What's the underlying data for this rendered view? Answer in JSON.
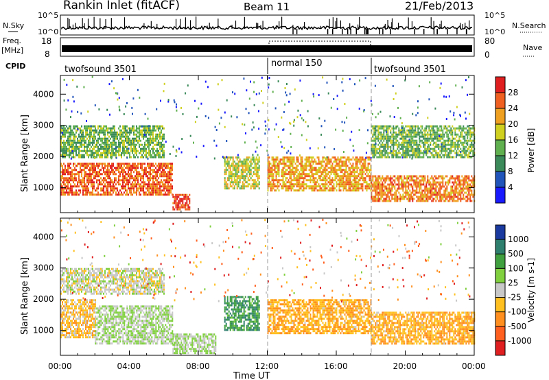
{
  "header": {
    "station": "Rankin Inlet (fitACF)",
    "beam": "Beam 11",
    "date": "21/Feb/2013"
  },
  "noise_panel": {
    "left_label": "N.Sky",
    "right_label": "N.Search",
    "left_ticks": [
      "10^5",
      "10^0"
    ],
    "right_ticks": [
      "10^5",
      "10^0"
    ]
  },
  "freq_panel": {
    "left_label_1": "Freq.",
    "left_label_2": "[MHz]",
    "right_label": "Nave",
    "left_ticks": [
      "18",
      "8"
    ],
    "right_ticks": [
      "80",
      "0"
    ]
  },
  "cpid": {
    "label": "CPID",
    "segments": [
      {
        "name": "twofsound 3501",
        "start_hour": 0
      },
      {
        "name": "normal 150",
        "start_hour": 12
      },
      {
        "name": "twofsound 3501",
        "start_hour": 18
      }
    ]
  },
  "time_axis": {
    "label": "Time UT",
    "ticks": [
      "00:00",
      "04:00",
      "08:00",
      "12:00",
      "16:00",
      "20:00",
      "00:00"
    ]
  },
  "range_axis": {
    "label": "Slant Range [km]",
    "ticks": [
      "1000",
      "2000",
      "3000",
      "4000"
    ]
  },
  "power_colorbar": {
    "label": "Power [dB]",
    "ticks": [
      "4",
      "8",
      "12",
      "16",
      "20",
      "24",
      "28"
    ],
    "colors": [
      "#1a1aff",
      "#2255bb",
      "#3a8a5a",
      "#60b050",
      "#d0d020",
      "#f0a020",
      "#f06020",
      "#e02020"
    ]
  },
  "velocity_colorbar": {
    "label": "Velocity [m s-1]",
    "ticks": [
      "1000",
      "500",
      "100",
      "25",
      "-25",
      "-100",
      "-500",
      "-1000"
    ],
    "colors": [
      "#1a3aa0",
      "#2f7f6f",
      "#40a040",
      "#80d040",
      "#c8c8c8",
      "#ffc020",
      "#ff9020",
      "#ff6020",
      "#e02020"
    ]
  },
  "chart_data": [
    {
      "type": "heatmap",
      "title": "Power [dB]",
      "xlabel": "Time UT",
      "ylabel": "Slant Range [km]",
      "xlim": [
        0,
        24
      ],
      "ylim": [
        200,
        4600
      ],
      "color_range": [
        0,
        32
      ],
      "features": [
        {
          "hours": [
            0,
            6.5
          ],
          "range_km": [
            800,
            1800
          ],
          "power_db": 26
        },
        {
          "hours": [
            0,
            6
          ],
          "range_km": [
            2000,
            3000
          ],
          "power_db": 14
        },
        {
          "hours": [
            6.5,
            7.5
          ],
          "range_km": [
            300,
            800
          ],
          "power_db": 28
        },
        {
          "hours": [
            9.5,
            11.5
          ],
          "range_km": [
            1000,
            2000
          ],
          "power_db": 18
        },
        {
          "hours": [
            12,
            18
          ],
          "range_km": [
            900,
            2000
          ],
          "power_db": 22
        },
        {
          "hours": [
            18,
            24
          ],
          "range_km": [
            600,
            1400
          ],
          "power_db": 24
        },
        {
          "hours": [
            18,
            24
          ],
          "range_km": [
            2000,
            3000
          ],
          "power_db": 14
        }
      ]
    },
    {
      "type": "heatmap",
      "title": "Velocity",
      "xlabel": "Time UT",
      "ylabel": "Slant Range [km]",
      "xlim": [
        0,
        24
      ],
      "ylim": [
        200,
        4600
      ],
      "color_range": [
        -1000,
        1000
      ],
      "features": [
        {
          "hours": [
            0,
            2
          ],
          "range_km": [
            800,
            2000
          ],
          "velocity": -200
        },
        {
          "hours": [
            2,
            6.5
          ],
          "range_km": [
            600,
            1800
          ],
          "velocity": 120
        },
        {
          "hours": [
            6.5,
            9
          ],
          "range_km": [
            300,
            900
          ],
          "velocity": 120
        },
        {
          "hours": [
            9.5,
            11.5
          ],
          "range_km": [
            1000,
            2100
          ],
          "velocity": 500
        },
        {
          "hours": [
            12,
            18
          ],
          "range_km": [
            900,
            2000
          ],
          "velocity": -300
        },
        {
          "hours": [
            18,
            24
          ],
          "range_km": [
            600,
            1600
          ],
          "velocity": -300
        },
        {
          "hours": [
            0,
            6
          ],
          "range_km": [
            2200,
            3000
          ],
          "velocity": 0
        }
      ]
    }
  ]
}
